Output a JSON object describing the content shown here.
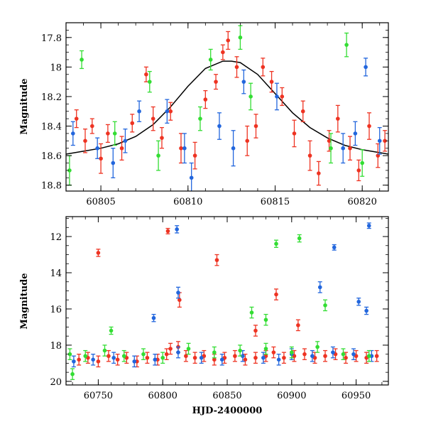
{
  "chart_data": [
    {
      "id": "zoom",
      "type": "scatter",
      "ylabel": "Magnitude",
      "xlabel": "",
      "xlim": [
        60803,
        60821.5
      ],
      "ylim": [
        18.84,
        17.7
      ],
      "y_inverted": true,
      "xticks": [
        60805,
        60810,
        60815,
        60820
      ],
      "xtick_labels": [
        "60805",
        "60810",
        "60815",
        "60820"
      ],
      "yticks": [
        17.8,
        18,
        18.2,
        18.4,
        18.6,
        18.8
      ],
      "ytick_labels": [
        "17.8",
        "18",
        "18.2",
        "18.4",
        "18.6",
        "18.8"
      ],
      "model_curve": {
        "name": "model",
        "color": "#000000",
        "x": [
          60803,
          60804,
          60805,
          60806,
          60807,
          60808,
          60809,
          60810,
          60811,
          60812,
          60812.5,
          60813,
          60814,
          60815,
          60816,
          60817,
          60818,
          60819,
          60820,
          60821,
          60821.5
        ],
        "y": [
          18.59,
          18.57,
          18.55,
          18.52,
          18.47,
          18.39,
          18.27,
          18.13,
          18.01,
          17.96,
          17.96,
          17.97,
          18.05,
          18.18,
          18.31,
          18.41,
          18.48,
          18.53,
          18.56,
          18.58,
          18.59
        ]
      },
      "series": [
        {
          "name": "red",
          "color": "#ee3322",
          "x": [
            60803.6,
            60804.1,
            60804.5,
            60805.0,
            60805.4,
            60806.2,
            60806.8,
            60807.6,
            60808.0,
            60808.5,
            60809.0,
            60809.6,
            60810.4,
            60811.0,
            60811.6,
            60812.0,
            60812.3,
            60812.8,
            60813.4,
            60813.9,
            60814.3,
            60814.8,
            60815.4,
            60816.1,
            60816.6,
            60817.0,
            60817.5,
            60818.1,
            60818.6,
            60819.3,
            60819.8,
            60820.4,
            60820.9,
            60821.3
          ],
          "y": [
            18.35,
            18.5,
            18.4,
            18.62,
            18.45,
            18.55,
            18.38,
            18.05,
            18.35,
            18.48,
            18.3,
            18.55,
            18.6,
            18.22,
            18.1,
            17.9,
            17.82,
            18.0,
            18.5,
            18.4,
            18.0,
            18.1,
            18.2,
            18.45,
            18.3,
            18.6,
            18.72,
            18.5,
            18.35,
            18.55,
            18.7,
            18.4,
            18.6,
            18.5
          ],
          "err": [
            0.06,
            0.08,
            0.05,
            0.1,
            0.06,
            0.08,
            0.06,
            0.05,
            0.08,
            0.07,
            0.06,
            0.1,
            0.09,
            0.06,
            0.05,
            0.05,
            0.06,
            0.07,
            0.1,
            0.08,
            0.06,
            0.07,
            0.06,
            0.09,
            0.07,
            0.1,
            0.08,
            0.07,
            0.09,
            0.08,
            0.07,
            0.09,
            0.08,
            0.07
          ]
        },
        {
          "name": "blue",
          "color": "#2266dd",
          "x": [
            60803.4,
            60804.8,
            60805.7,
            60806.4,
            60807.2,
            60808.8,
            60809.8,
            60810.2,
            60811.8,
            60812.6,
            60813.2,
            60815.1,
            60818.9,
            60819.6,
            60820.2,
            60821.0
          ],
          "y": [
            18.45,
            18.55,
            18.65,
            18.5,
            18.3,
            18.3,
            18.55,
            18.75,
            18.4,
            18.55,
            18.1,
            18.2,
            18.55,
            18.45,
            18.0,
            18.5
          ],
          "err": [
            0.08,
            0.07,
            0.1,
            0.08,
            0.07,
            0.08,
            0.1,
            0.1,
            0.09,
            0.12,
            0.08,
            0.09,
            0.1,
            0.08,
            0.06,
            0.09
          ]
        },
        {
          "name": "green",
          "color": "#33dd33",
          "x": [
            60803.2,
            60803.9,
            60805.8,
            60807.8,
            60808.3,
            60810.7,
            60811.3,
            60813.6,
            60813.0,
            60818.2,
            60819.1,
            60820.0
          ],
          "y": [
            18.7,
            17.95,
            18.45,
            18.1,
            18.6,
            18.35,
            17.95,
            18.2,
            17.8,
            18.55,
            17.85,
            18.65
          ],
          "err": [
            0.1,
            0.06,
            0.08,
            0.07,
            0.1,
            0.08,
            0.07,
            0.09,
            0.08,
            0.1,
            0.08,
            0.09
          ]
        }
      ]
    },
    {
      "id": "full",
      "type": "scatter",
      "ylabel": "Magnitude",
      "xlabel": "HJD-2400000",
      "xlim": [
        60725,
        60975
      ],
      "ylim": [
        20.2,
        10.9
      ],
      "y_inverted": true,
      "xticks": [
        60750,
        60800,
        60850,
        60900,
        60950
      ],
      "xtick_labels": [
        "60750",
        "60800",
        "60850",
        "60900",
        "60950"
      ],
      "yticks": [
        12,
        14,
        16,
        18,
        20
      ],
      "ytick_labels": [
        "12",
        "14",
        "16",
        "18",
        "20"
      ],
      "series": [
        {
          "name": "red",
          "color": "#ee3322",
          "x": [
            60735,
            60742,
            60750,
            60758,
            60765,
            60772,
            60780,
            60788,
            60796,
            60803,
            60806,
            60812,
            60818,
            60825,
            60832,
            60840,
            60848,
            60856,
            60864,
            60872,
            60880,
            60886,
            60894,
            60902,
            60910,
            60918,
            60926,
            60934,
            60942,
            60950,
            60958,
            60966
          ],
          "y": [
            18.8,
            18.7,
            18.9,
            18.6,
            18.8,
            18.7,
            18.9,
            18.7,
            18.8,
            18.5,
            18.2,
            18.1,
            18.6,
            18.7,
            18.6,
            18.8,
            18.7,
            18.6,
            18.8,
            18.7,
            18.6,
            18.4,
            18.7,
            18.6,
            18.5,
            18.7,
            18.6,
            18.5,
            18.7,
            18.6,
            18.7,
            18.6
          ],
          "err": [
            0.3,
            0.3,
            0.3,
            0.3,
            0.3,
            0.3,
            0.3,
            0.3,
            0.3,
            0.3,
            0.3,
            0.3,
            0.3,
            0.3,
            0.3,
            0.3,
            0.3,
            0.3,
            0.3,
            0.3,
            0.3,
            0.3,
            0.3,
            0.3,
            0.3,
            0.3,
            0.3,
            0.3,
            0.3,
            0.3,
            0.3,
            0.3
          ]
        },
        {
          "name": "red-outliers",
          "color": "#ee3322",
          "x": [
            60750,
            60804,
            60842,
            60813,
            60888,
            60872,
            60905
          ],
          "y": [
            12.9,
            11.7,
            13.3,
            15.5,
            15.2,
            17.2,
            16.9
          ],
          "err": [
            0.2,
            0.15,
            0.3,
            0.4,
            0.3,
            0.3,
            0.3
          ]
        },
        {
          "name": "blue",
          "color": "#2266dd",
          "x": [
            60731,
            60746,
            60762,
            60778,
            60794,
            60812,
            60830,
            60846,
            60862,
            60878,
            60890,
            60900,
            60916,
            60932,
            60948,
            60962
          ],
          "y": [
            18.9,
            18.8,
            18.7,
            18.9,
            18.8,
            18.4,
            18.7,
            18.8,
            18.6,
            18.7,
            18.8,
            18.5,
            18.6,
            18.4,
            18.5,
            18.6
          ],
          "err": [
            0.3,
            0.3,
            0.3,
            0.3,
            0.3,
            0.3,
            0.3,
            0.3,
            0.3,
            0.3,
            0.3,
            0.3,
            0.3,
            0.3,
            0.3,
            0.3
          ]
        },
        {
          "name": "blue-outliers",
          "color": "#2266dd",
          "x": [
            60811,
            60812,
            60793,
            60933,
            60922,
            60960,
            60952,
            60958
          ],
          "y": [
            11.6,
            15.1,
            16.5,
            12.6,
            14.8,
            11.4,
            15.6,
            16.1
          ],
          "err": [
            0.2,
            0.3,
            0.2,
            0.15,
            0.3,
            0.15,
            0.2,
            0.2
          ]
        },
        {
          "name": "green",
          "color": "#33dd33",
          "x": [
            60728,
            60740,
            60755,
            60770,
            60785,
            60800,
            60820,
            60840,
            60860,
            60880,
            60900,
            60920,
            60940,
            60960
          ],
          "y": [
            18.5,
            18.6,
            18.3,
            18.6,
            18.5,
            18.7,
            18.2,
            18.4,
            18.3,
            18.2,
            18.4,
            18.1,
            18.5,
            18.6
          ],
          "err": [
            0.3,
            0.3,
            0.3,
            0.3,
            0.3,
            0.3,
            0.3,
            0.3,
            0.3,
            0.3,
            0.3,
            0.3,
            0.3,
            0.3
          ]
        },
        {
          "name": "green-outliers",
          "color": "#33dd33",
          "x": [
            60888,
            60906,
            60869,
            60880,
            60926,
            60760,
            60730
          ],
          "y": [
            12.4,
            12.1,
            16.2,
            16.6,
            15.8,
            17.2,
            19.6
          ],
          "err": [
            0.2,
            0.2,
            0.3,
            0.3,
            0.3,
            0.2,
            0.3
          ]
        }
      ]
    }
  ]
}
